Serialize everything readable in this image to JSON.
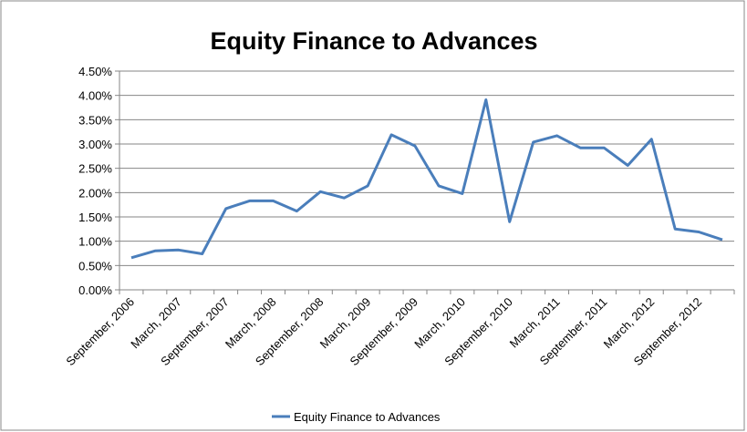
{
  "chart_data": {
    "type": "line",
    "title": "Equity Finance to Advances",
    "categories": [
      "September, 2006",
      null,
      "March, 2007",
      null,
      "September, 2007",
      null,
      "March, 2008",
      null,
      "September, 2008",
      null,
      "March, 2009",
      null,
      "September, 2009",
      null,
      "March, 2010",
      null,
      "September, 2010",
      null,
      "March, 2011",
      null,
      "September, 2011",
      null,
      "March, 2012",
      null,
      "September, 2012",
      null
    ],
    "series": [
      {
        "name": "Equity Finance to Advances",
        "color": "#4a7ebb",
        "values": [
          0.66,
          0.8,
          0.82,
          0.74,
          1.67,
          1.83,
          1.83,
          1.62,
          2.02,
          1.89,
          2.14,
          3.19,
          2.96,
          2.14,
          1.98,
          3.91,
          1.4,
          3.04,
          3.17,
          2.92,
          2.92,
          2.56,
          3.1,
          1.25,
          1.19,
          1.03
        ]
      }
    ],
    "ylim": [
      0,
      4.5
    ],
    "yticks": [
      {
        "value": 0,
        "label": "0.00%"
      },
      {
        "value": 0.5,
        "label": "0.50%"
      },
      {
        "value": 1,
        "label": "1.00%"
      },
      {
        "value": 1.5,
        "label": "1.50%"
      },
      {
        "value": 2,
        "label": "2.00%"
      },
      {
        "value": 2.5,
        "label": "2.50%"
      },
      {
        "value": 3,
        "label": "3.00%"
      },
      {
        "value": 3.5,
        "label": "3.50%"
      },
      {
        "value": 4,
        "label": "4.00%"
      },
      {
        "value": 4.5,
        "label": "4.50%"
      }
    ],
    "grid": true,
    "legend": "bottom"
  }
}
